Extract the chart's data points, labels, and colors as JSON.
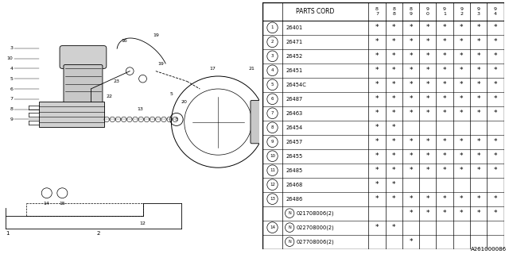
{
  "watermark": "A261000086",
  "rows": [
    {
      "num": "1",
      "part": "26401",
      "N_prefix": false,
      "has_circle": true,
      "cols": [
        1,
        1,
        1,
        1,
        1,
        1,
        1,
        1
      ]
    },
    {
      "num": "2",
      "part": "26471",
      "N_prefix": false,
      "has_circle": true,
      "cols": [
        1,
        1,
        1,
        1,
        1,
        1,
        1,
        1
      ]
    },
    {
      "num": "3",
      "part": "26452",
      "N_prefix": false,
      "has_circle": true,
      "cols": [
        1,
        1,
        1,
        1,
        1,
        1,
        1,
        1
      ]
    },
    {
      "num": "4",
      "part": "26451",
      "N_prefix": false,
      "has_circle": true,
      "cols": [
        1,
        1,
        1,
        1,
        1,
        1,
        1,
        1
      ]
    },
    {
      "num": "5",
      "part": "26454C",
      "N_prefix": false,
      "has_circle": true,
      "cols": [
        1,
        1,
        1,
        1,
        1,
        1,
        1,
        1
      ]
    },
    {
      "num": "6",
      "part": "26487",
      "N_prefix": false,
      "has_circle": true,
      "cols": [
        1,
        1,
        1,
        1,
        1,
        1,
        1,
        1
      ]
    },
    {
      "num": "7",
      "part": "26463",
      "N_prefix": false,
      "has_circle": true,
      "cols": [
        1,
        1,
        1,
        1,
        1,
        1,
        1,
        1
      ]
    },
    {
      "num": "8",
      "part": "26454",
      "N_prefix": false,
      "has_circle": true,
      "cols": [
        1,
        1,
        0,
        0,
        0,
        0,
        0,
        0
      ]
    },
    {
      "num": "9",
      "part": "26457",
      "N_prefix": false,
      "has_circle": true,
      "cols": [
        1,
        1,
        1,
        1,
        1,
        1,
        1,
        1
      ]
    },
    {
      "num": "10",
      "part": "26455",
      "N_prefix": false,
      "has_circle": true,
      "cols": [
        1,
        1,
        1,
        1,
        1,
        1,
        1,
        1
      ]
    },
    {
      "num": "11",
      "part": "26485",
      "N_prefix": false,
      "has_circle": true,
      "cols": [
        1,
        1,
        1,
        1,
        1,
        1,
        1,
        1
      ]
    },
    {
      "num": "12",
      "part": "26468",
      "N_prefix": false,
      "has_circle": true,
      "cols": [
        1,
        1,
        0,
        0,
        0,
        0,
        0,
        0
      ]
    },
    {
      "num": "13",
      "part": "26486",
      "N_prefix": false,
      "has_circle": true,
      "cols": [
        1,
        1,
        1,
        1,
        1,
        1,
        1,
        1
      ]
    },
    {
      "num": "",
      "part": "021708006(2)",
      "N_prefix": true,
      "has_circle": false,
      "cols": [
        0,
        0,
        1,
        1,
        1,
        1,
        1,
        1
      ]
    },
    {
      "num": "14",
      "part": "022708000(2)",
      "N_prefix": true,
      "has_circle": true,
      "cols": [
        1,
        1,
        0,
        0,
        0,
        0,
        0,
        0
      ]
    },
    {
      "num": "",
      "part": "027708006(2)",
      "N_prefix": true,
      "has_circle": false,
      "cols": [
        0,
        0,
        1,
        0,
        0,
        0,
        0,
        0
      ]
    }
  ],
  "year_headers": [
    "8\n7",
    "8\n8",
    "8\n9",
    "9\n0",
    "9\n1",
    "9\n2",
    "9\n3",
    "9\n4"
  ],
  "bg_color": "#ffffff",
  "line_color": "#000000",
  "gray_color": "#aaaaaa"
}
